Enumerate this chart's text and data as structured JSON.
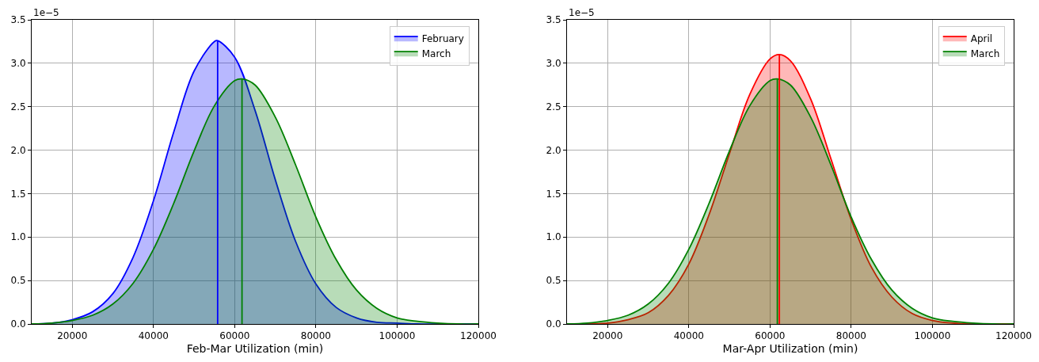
{
  "chart_data": [
    {
      "type": "area",
      "xlabel": "Feb-Mar Utilization (min)",
      "annotations": [
        "1e−5"
      ],
      "xlim": [
        10000,
        120000
      ],
      "xticks": [
        20000,
        40000,
        60000,
        80000,
        100000,
        120000
      ],
      "ylim": [
        0,
        3.5
      ],
      "yticks": [
        {
          "value": 0,
          "label": "0.0"
        },
        {
          "value": 0.5,
          "label": "0.5"
        },
        {
          "value": 1,
          "label": "1.0"
        },
        {
          "value": 1.5,
          "label": "1.5"
        },
        {
          "value": 2,
          "label": "2.0"
        },
        {
          "value": 2.5,
          "label": "2.5"
        },
        {
          "value": 3,
          "label": "3.0"
        },
        {
          "value": 3.5,
          "label": "3.5"
        }
      ],
      "grid": true,
      "legend": "top right",
      "series": [
        {
          "name": "February",
          "color": "#0000ff",
          "x": [
            10000,
            15000,
            20000,
            25000,
            30000,
            35000,
            40000,
            45000,
            50000,
            55000,
            55800,
            60000,
            65000,
            70000,
            75000,
            80000,
            85000,
            90000,
            95000,
            100000,
            105000,
            110000,
            120000
          ],
          "values": [
            0,
            0.01,
            0.05,
            0.14,
            0.35,
            0.77,
            1.42,
            2.21,
            2.91,
            3.25,
            3.26,
            3.07,
            2.46,
            1.66,
            0.95,
            0.46,
            0.19,
            0.07,
            0.02,
            0.01,
            0,
            0,
            0
          ]
        },
        {
          "name": "March",
          "color": "#008000",
          "x": [
            10000,
            15000,
            20000,
            25000,
            30000,
            35000,
            40000,
            45000,
            50000,
            55000,
            60000,
            61800,
            65000,
            70000,
            75000,
            80000,
            85000,
            90000,
            95000,
            100000,
            105000,
            110000,
            115000,
            120000
          ],
          "values": [
            0,
            0.01,
            0.04,
            0.1,
            0.23,
            0.47,
            0.86,
            1.39,
            1.99,
            2.51,
            2.8,
            2.82,
            2.75,
            2.38,
            1.83,
            1.23,
            0.74,
            0.39,
            0.18,
            0.07,
            0.03,
            0.01,
            0,
            0
          ]
        },
        {
          "type": "line",
          "color": "#0000ff",
          "x": [
            55800,
            55800
          ],
          "values": [
            0,
            3.26
          ]
        },
        {
          "type": "line",
          "color": "#008000",
          "x": [
            61800,
            61800
          ],
          "values": [
            0,
            2.82
          ]
        }
      ]
    },
    {
      "type": "area",
      "xlabel": "Mar-Apr Utilization (min)",
      "annotations": [
        "1e−5"
      ],
      "xlim": [
        10000,
        120000
      ],
      "xticks": [
        20000,
        40000,
        60000,
        80000,
        100000,
        120000
      ],
      "ylim": [
        0,
        3.5
      ],
      "yticks": [
        {
          "value": 0,
          "label": "0.0"
        },
        {
          "value": 0.5,
          "label": "0.5"
        },
        {
          "value": 1,
          "label": "1.0"
        },
        {
          "value": 1.5,
          "label": "1.5"
        },
        {
          "value": 2,
          "label": "2.0"
        },
        {
          "value": 2.5,
          "label": "2.5"
        },
        {
          "value": 3,
          "label": "3.0"
        },
        {
          "value": 3.5,
          "label": "3.5"
        }
      ],
      "grid": true,
      "legend": "top right",
      "series": [
        {
          "name": "April",
          "color": "#ff0000",
          "x": [
            10000,
            15000,
            20000,
            25000,
            30000,
            35000,
            40000,
            45000,
            50000,
            55000,
            60000,
            62300,
            65000,
            70000,
            75000,
            80000,
            85000,
            90000,
            95000,
            100000,
            105000,
            110000,
            115000,
            120000
          ],
          "values": [
            0,
            0,
            0.01,
            0.05,
            0.13,
            0.33,
            0.69,
            1.26,
            1.96,
            2.64,
            3.05,
            3.1,
            3.03,
            2.59,
            1.9,
            1.2,
            0.65,
            0.31,
            0.12,
            0.04,
            0.01,
            0,
            0,
            0
          ]
        },
        {
          "name": "March",
          "color": "#008000",
          "x": [
            10000,
            15000,
            20000,
            25000,
            30000,
            35000,
            40000,
            45000,
            50000,
            55000,
            60000,
            61800,
            65000,
            70000,
            75000,
            80000,
            85000,
            90000,
            95000,
            100000,
            105000,
            110000,
            115000,
            120000
          ],
          "values": [
            0,
            0.01,
            0.04,
            0.1,
            0.23,
            0.47,
            0.86,
            1.39,
            1.99,
            2.51,
            2.8,
            2.82,
            2.75,
            2.38,
            1.83,
            1.23,
            0.74,
            0.39,
            0.18,
            0.07,
            0.03,
            0.01,
            0,
            0
          ]
        },
        {
          "type": "line",
          "color": "#ff0000",
          "x": [
            62300,
            62300
          ],
          "values": [
            0,
            3.1
          ]
        },
        {
          "type": "line",
          "color": "#008000",
          "x": [
            61800,
            61800
          ],
          "values": [
            0,
            2.82
          ]
        }
      ]
    }
  ]
}
